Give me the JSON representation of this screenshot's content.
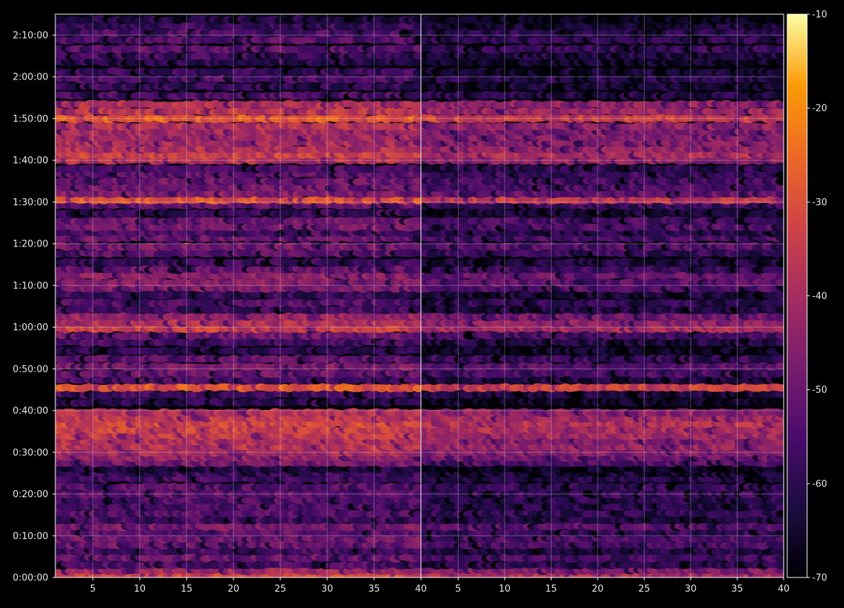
{
  "chart_data": {
    "type": "heatmap",
    "background": "#000000",
    "colormap": "inferno",
    "grid": true,
    "colorbar": {
      "range": [
        -70,
        -10
      ],
      "ticks": [
        "-10",
        "-20",
        "-30",
        "-40",
        "-50",
        "-60",
        "-70"
      ],
      "tick_values": [
        -10,
        -20,
        -30,
        -40,
        -50,
        -60,
        -70
      ]
    },
    "y_axis": {
      "range_seconds": [
        0,
        8100
      ],
      "ticks": [
        "0:00:00",
        "0:10:00",
        "0:20:00",
        "0:30:00",
        "0:40:00",
        "0:50:00",
        "1:00:00",
        "1:10:00",
        "1:20:00",
        "1:30:00",
        "1:40:00",
        "1:50:00",
        "2:00:00",
        "2:10:00"
      ],
      "tick_seconds": [
        0,
        600,
        1200,
        1800,
        2400,
        3000,
        3600,
        4200,
        4800,
        5400,
        6000,
        6600,
        7200,
        7800
      ]
    },
    "panels": [
      {
        "name": "left",
        "xlim": [
          1,
          40
        ],
        "x_ticks": [
          "5",
          "10",
          "15",
          "20",
          "25",
          "30",
          "35",
          "40"
        ],
        "x_tick_values": [
          5,
          10,
          15,
          20,
          25,
          30,
          35,
          40
        ],
        "level_offset": 0
      },
      {
        "name": "right",
        "xlim": [
          1,
          40
        ],
        "x_ticks": [
          "5",
          "10",
          "15",
          "20",
          "25",
          "30",
          "35",
          "40"
        ],
        "x_tick_values": [
          5,
          10,
          15,
          20,
          25,
          30,
          35,
          40
        ],
        "level_offset": -6
      }
    ],
    "bands": [
      {
        "t": 20,
        "v": -32
      },
      {
        "t": 100,
        "v": -41
      },
      {
        "t": 180,
        "v": -55
      },
      {
        "t": 280,
        "v": -50
      },
      {
        "t": 380,
        "v": -56
      },
      {
        "t": 470,
        "v": -50
      },
      {
        "t": 560,
        "v": -48
      },
      {
        "t": 640,
        "v": -52
      },
      {
        "t": 730,
        "v": -47
      },
      {
        "t": 830,
        "v": -56
      },
      {
        "t": 920,
        "v": -53
      },
      {
        "t": 1020,
        "v": -55
      },
      {
        "t": 1110,
        "v": -54
      },
      {
        "t": 1200,
        "v": -52
      },
      {
        "t": 1300,
        "v": -53
      },
      {
        "t": 1420,
        "v": -56
      },
      {
        "t": 1500,
        "v": -58
      },
      {
        "t": 1560,
        "v": -62
      },
      {
        "t": 1650,
        "v": -48
      },
      {
        "t": 1730,
        "v": -44
      },
      {
        "t": 1800,
        "v": -40
      },
      {
        "t": 1880,
        "v": -37
      },
      {
        "t": 1960,
        "v": -38
      },
      {
        "t": 2040,
        "v": -35
      },
      {
        "t": 2120,
        "v": -33
      },
      {
        "t": 2210,
        "v": -32
      },
      {
        "t": 2290,
        "v": -35
      },
      {
        "t": 2370,
        "v": -38
      },
      {
        "t": 2520,
        "v": -60
      },
      {
        "t": 2630,
        "v": -57
      },
      {
        "t": 2730,
        "v": -28
      },
      {
        "t": 2840,
        "v": -56
      },
      {
        "t": 2930,
        "v": -50
      },
      {
        "t": 3030,
        "v": -47
      },
      {
        "t": 3140,
        "v": -52
      },
      {
        "t": 3260,
        "v": -60
      },
      {
        "t": 3380,
        "v": -56
      },
      {
        "t": 3480,
        "v": -50
      },
      {
        "t": 3580,
        "v": -34
      },
      {
        "t": 3660,
        "v": -38
      },
      {
        "t": 3750,
        "v": -43
      },
      {
        "t": 3850,
        "v": -56
      },
      {
        "t": 3950,
        "v": -54
      },
      {
        "t": 4060,
        "v": -58
      },
      {
        "t": 4160,
        "v": -48
      },
      {
        "t": 4240,
        "v": -46
      },
      {
        "t": 4340,
        "v": -44
      },
      {
        "t": 4430,
        "v": -51
      },
      {
        "t": 4530,
        "v": -57
      },
      {
        "t": 4660,
        "v": -52
      },
      {
        "t": 4760,
        "v": -48
      },
      {
        "t": 4880,
        "v": -50
      },
      {
        "t": 4960,
        "v": -55
      },
      {
        "t": 5040,
        "v": -48
      },
      {
        "t": 5130,
        "v": -50
      },
      {
        "t": 5240,
        "v": -58
      },
      {
        "t": 5350,
        "v": -52
      },
      {
        "t": 5430,
        "v": -30
      },
      {
        "t": 5520,
        "v": -46
      },
      {
        "t": 5610,
        "v": -49
      },
      {
        "t": 5700,
        "v": -50
      },
      {
        "t": 5800,
        "v": -52
      },
      {
        "t": 5880,
        "v": -55
      },
      {
        "t": 6000,
        "v": -38
      },
      {
        "t": 6080,
        "v": -33
      },
      {
        "t": 6160,
        "v": -38
      },
      {
        "t": 6250,
        "v": -40
      },
      {
        "t": 6330,
        "v": -41
      },
      {
        "t": 6410,
        "v": -41
      },
      {
        "t": 6490,
        "v": -38
      },
      {
        "t": 6600,
        "v": -28
      },
      {
        "t": 6700,
        "v": -36
      },
      {
        "t": 6800,
        "v": -38
      },
      {
        "t": 6930,
        "v": -55
      },
      {
        "t": 7060,
        "v": -58
      },
      {
        "t": 7170,
        "v": -55
      },
      {
        "t": 7270,
        "v": -58
      },
      {
        "t": 7410,
        "v": -60
      },
      {
        "t": 7500,
        "v": -57
      },
      {
        "t": 7600,
        "v": -52
      },
      {
        "t": 7730,
        "v": -54
      },
      {
        "t": 7830,
        "v": -55
      },
      {
        "t": 7930,
        "v": -58
      },
      {
        "t": 8020,
        "v": -62
      }
    ]
  }
}
